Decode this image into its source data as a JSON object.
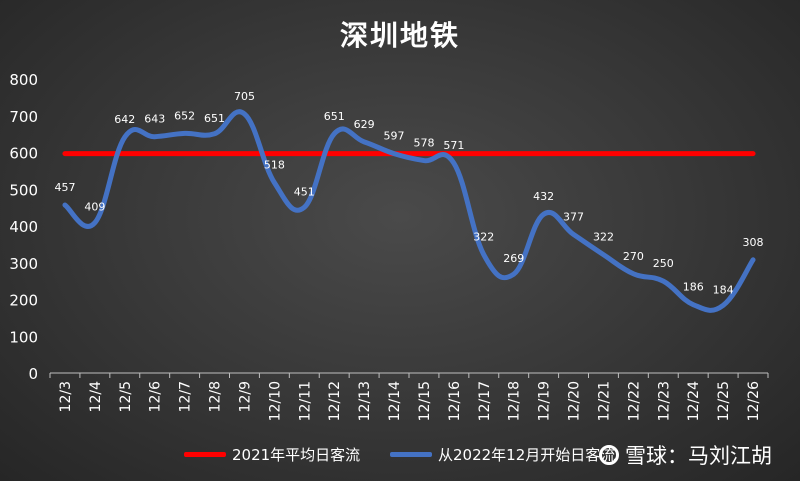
{
  "chart_data": {
    "type": "line",
    "title": "深圳地铁",
    "categories": [
      "12/3",
      "12/4",
      "12/5",
      "12/6",
      "12/7",
      "12/8",
      "12/9",
      "12/10",
      "12/11",
      "12/12",
      "12/13",
      "12/14",
      "12/15",
      "12/16",
      "12/17",
      "12/18",
      "12/19",
      "12/20",
      "12/21",
      "12/22",
      "12/23",
      "12/24",
      "12/25",
      "12/26"
    ],
    "series": [
      {
        "name": "2021年平均日客流",
        "values": [
          597,
          597,
          597,
          597,
          597,
          597,
          597,
          597,
          597,
          597,
          597,
          597,
          597,
          597,
          597,
          597,
          597,
          597,
          597,
          597,
          597,
          597,
          597,
          597
        ],
        "color": "#ff0000",
        "show_labels": false
      },
      {
        "name": "从2022年12月开始日客流",
        "values": [
          457,
          409,
          642,
          643,
          652,
          651,
          705,
          518,
          451,
          651,
          629,
          597,
          578,
          571,
          322,
          269,
          432,
          377,
          322,
          270,
          250,
          186,
          184,
          308
        ],
        "color": "#4472c4",
        "show_labels": true
      }
    ],
    "ylim": [
      0,
      800
    ],
    "yticks": [
      0,
      100,
      200,
      300,
      400,
      500,
      600,
      700,
      800
    ],
    "grid": false,
    "legend_position": "bottom"
  },
  "watermark": {
    "text": "雪球：马刘江胡"
  }
}
